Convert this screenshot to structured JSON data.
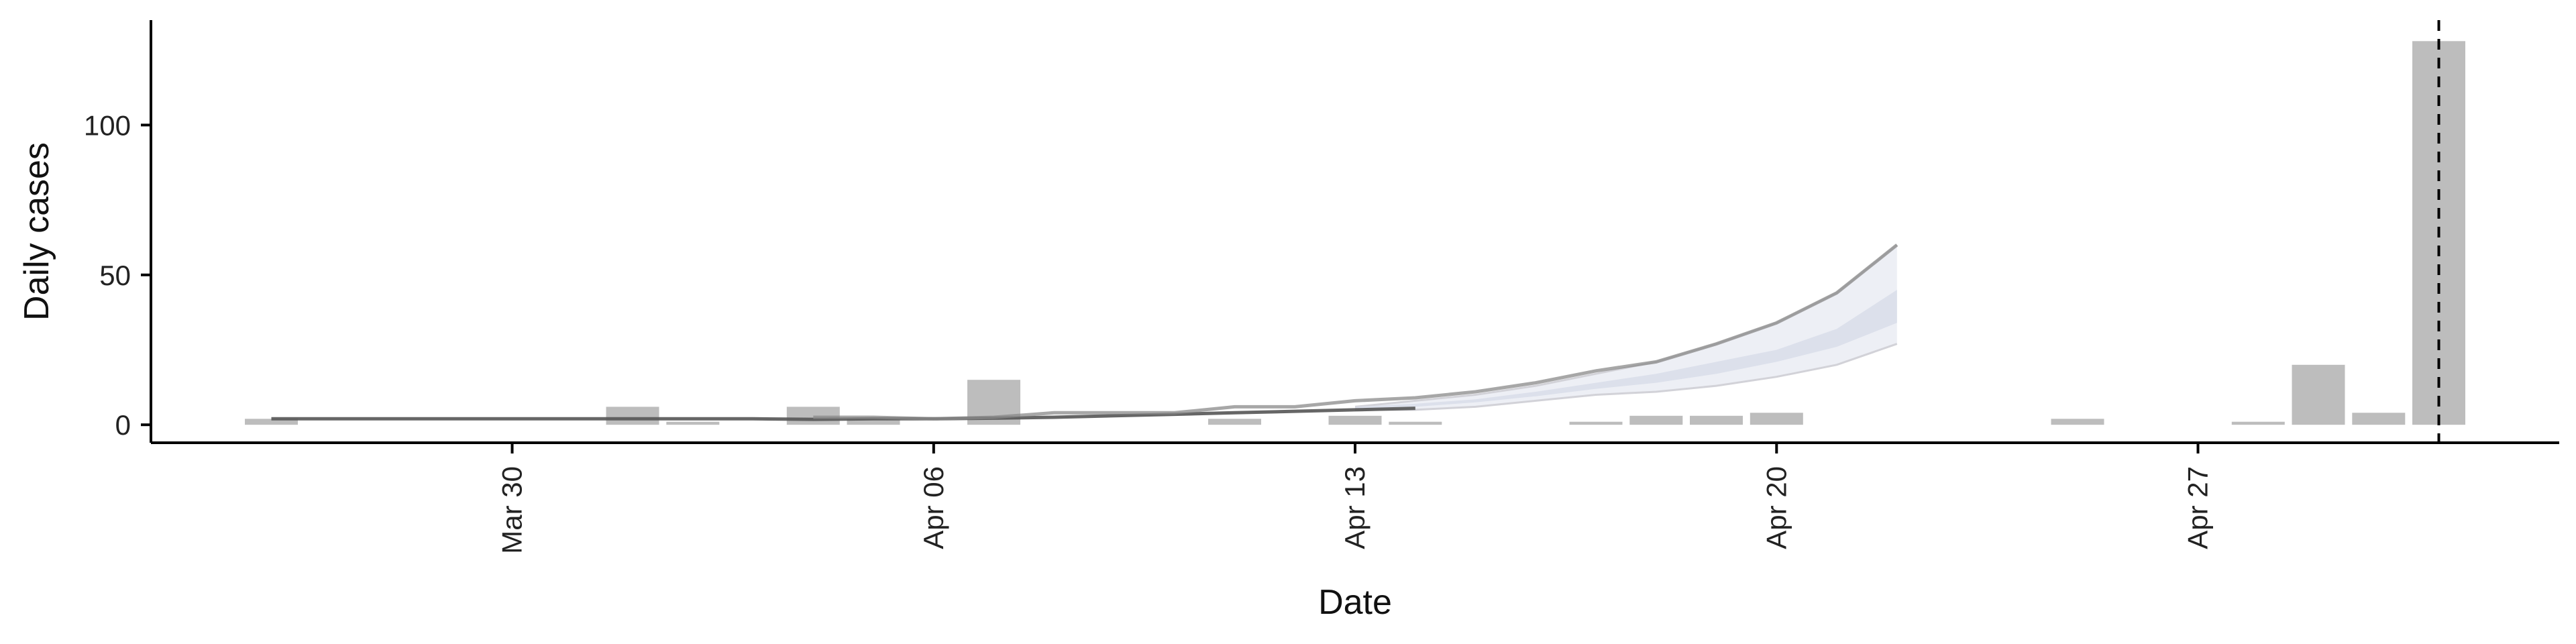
{
  "chart_data": {
    "type": "bar",
    "xlabel": "Date",
    "ylabel": "Daily cases",
    "y_ticks": [
      0,
      50,
      100
    ],
    "ylim": [
      -6,
      135
    ],
    "x_ticks": [
      {
        "date": "2020-03-30",
        "label": "Mar 30"
      },
      {
        "date": "2020-04-06",
        "label": "Apr 06"
      },
      {
        "date": "2020-04-13",
        "label": "Apr 13"
      },
      {
        "date": "2020-04-20",
        "label": "Apr 20"
      },
      {
        "date": "2020-04-27",
        "label": "Apr 27"
      }
    ],
    "xlim": [
      "2020-03-24",
      "2020-05-03"
    ],
    "grid": false,
    "legend": "none",
    "reference_line": {
      "date": "2020-05-01",
      "style": "dashed"
    },
    "bars": [
      {
        "date": "2020-03-26",
        "value": 2
      },
      {
        "date": "2020-03-27",
        "value": 0
      },
      {
        "date": "2020-03-28",
        "value": 0
      },
      {
        "date": "2020-03-29",
        "value": 0
      },
      {
        "date": "2020-03-30",
        "value": 0
      },
      {
        "date": "2020-03-31",
        "value": 0
      },
      {
        "date": "2020-04-01",
        "value": 6
      },
      {
        "date": "2020-04-02",
        "value": 1
      },
      {
        "date": "2020-04-03",
        "value": 0
      },
      {
        "date": "2020-04-04",
        "value": 6
      },
      {
        "date": "2020-04-05",
        "value": 2
      },
      {
        "date": "2020-04-06",
        "value": 0
      },
      {
        "date": "2020-04-07",
        "value": 15
      },
      {
        "date": "2020-04-08",
        "value": 0
      },
      {
        "date": "2020-04-09",
        "value": 0
      },
      {
        "date": "2020-04-10",
        "value": 0
      },
      {
        "date": "2020-04-11",
        "value": 2
      },
      {
        "date": "2020-04-12",
        "value": 0
      },
      {
        "date": "2020-04-13",
        "value": 3
      },
      {
        "date": "2020-04-14",
        "value": 1
      },
      {
        "date": "2020-04-15",
        "value": 0
      },
      {
        "date": "2020-04-16",
        "value": 0
      },
      {
        "date": "2020-04-17",
        "value": 1
      },
      {
        "date": "2020-04-18",
        "value": 3
      },
      {
        "date": "2020-04-19",
        "value": 3
      },
      {
        "date": "2020-04-20",
        "value": 4
      },
      {
        "date": "2020-04-21",
        "value": 0
      },
      {
        "date": "2020-04-22",
        "value": 0
      },
      {
        "date": "2020-04-23",
        "value": 0
      },
      {
        "date": "2020-04-24",
        "value": 0
      },
      {
        "date": "2020-04-25",
        "value": 2
      },
      {
        "date": "2020-04-26",
        "value": 0
      },
      {
        "date": "2020-04-27",
        "value": 0
      },
      {
        "date": "2020-04-28",
        "value": 1
      },
      {
        "date": "2020-04-29",
        "value": 20
      },
      {
        "date": "2020-04-30",
        "value": 4
      },
      {
        "date": "2020-05-01",
        "value": 128
      }
    ],
    "lines": [
      {
        "style": "dark",
        "x": [
          "2020-03-26",
          "2020-03-27",
          "2020-03-28",
          "2020-03-29",
          "2020-03-30",
          "2020-03-31",
          "2020-04-01",
          "2020-04-02",
          "2020-04-03",
          "2020-04-04",
          "2020-04-05",
          "2020-04-06",
          "2020-04-07",
          "2020-04-08",
          "2020-04-09",
          "2020-04-10",
          "2020-04-11",
          "2020-04-12",
          "2020-04-13",
          "2020-04-14"
        ],
        "y": [
          2,
          2,
          2,
          2,
          2,
          2,
          2,
          2,
          2,
          1.8,
          2,
          2,
          2.2,
          2.5,
          3,
          3.5,
          4,
          4.5,
          5,
          5.5
        ]
      },
      {
        "style": "medium",
        "x": [
          "2020-04-04",
          "2020-04-05",
          "2020-04-06",
          "2020-04-07",
          "2020-04-08",
          "2020-04-09",
          "2020-04-10",
          "2020-04-11",
          "2020-04-12",
          "2020-04-13",
          "2020-04-14",
          "2020-04-15",
          "2020-04-16",
          "2020-04-17",
          "2020-04-18",
          "2020-04-19",
          "2020-04-20",
          "2020-04-21",
          "2020-04-22"
        ],
        "y": [
          2.5,
          2.5,
          2,
          2.5,
          4,
          4,
          4,
          6,
          6,
          8,
          9,
          11,
          14,
          18,
          21,
          27,
          34,
          44,
          60
        ]
      }
    ],
    "bands": [
      {
        "shade": "outer",
        "x": [
          "2020-04-13",
          "2020-04-14",
          "2020-04-15",
          "2020-04-16",
          "2020-04-17",
          "2020-04-18",
          "2020-04-19",
          "2020-04-20",
          "2020-04-21",
          "2020-04-22"
        ],
        "low": [
          5,
          5,
          6,
          8,
          10,
          11,
          13,
          16,
          20,
          27
        ],
        "high": [
          6,
          8,
          10,
          13,
          17,
          21,
          27,
          34,
          44,
          60
        ]
      },
      {
        "shade": "inner",
        "x": [
          "2020-04-13",
          "2020-04-14",
          "2020-04-15",
          "2020-04-16",
          "2020-04-17",
          "2020-04-18",
          "2020-04-19",
          "2020-04-20",
          "2020-04-21",
          "2020-04-22"
        ],
        "low": [
          5.5,
          6,
          7.5,
          9.5,
          12,
          14,
          17,
          21,
          26,
          34
        ],
        "high": [
          6,
          7,
          8.5,
          11,
          14,
          17,
          21,
          25,
          32,
          45
        ]
      }
    ],
    "colors": {
      "bar": "#bdbdbd",
      "line_dark": "#555555",
      "line_medium": "#8a8a8a",
      "band_outer": "#e9ebf2",
      "band_inner": "#d9deea",
      "axis": "#000000"
    }
  }
}
